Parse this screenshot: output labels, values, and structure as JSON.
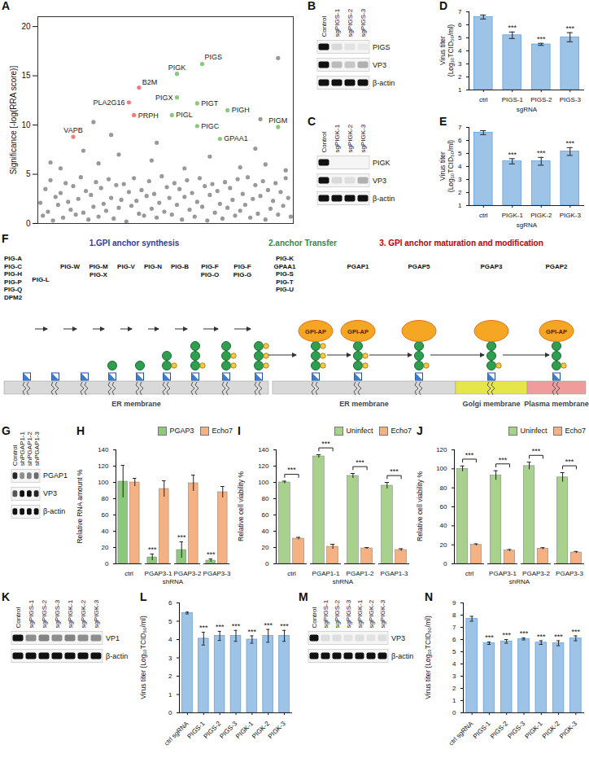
{
  "chart_data": [
    {
      "panel": "A",
      "type": "scatter",
      "y_label": "Significance [-log(RRA score)]",
      "xlim": [
        0,
        101
      ],
      "ylim": [
        0,
        21
      ],
      "yticks": [
        0,
        5,
        10,
        15,
        20
      ],
      "tick_labels": "y",
      "series": [
        {
          "color": "#999999",
          "x": [
            1,
            2,
            3,
            4,
            5,
            6,
            7,
            8,
            9,
            10,
            11,
            12,
            13,
            14,
            15,
            16,
            17,
            18,
            19,
            20,
            21,
            22,
            23,
            24,
            25,
            26,
            27,
            28,
            29,
            30,
            31,
            32,
            33,
            34,
            35,
            36,
            37,
            38,
            39,
            40,
            41,
            42,
            43,
            44,
            45,
            46,
            47,
            48,
            49,
            50,
            51,
            52,
            53,
            54,
            55,
            56,
            57,
            58,
            59,
            60,
            61,
            62,
            63,
            64,
            65,
            66,
            67,
            68,
            69,
            70,
            71,
            72,
            73,
            74,
            75,
            76,
            77,
            78,
            79,
            80,
            81,
            82,
            83,
            84,
            85,
            86,
            87,
            88,
            89,
            90,
            91,
            92,
            93,
            94,
            95,
            96,
            97,
            98,
            99,
            100,
            5,
            9,
            18,
            24,
            29,
            32,
            45,
            47,
            58,
            68,
            80,
            86,
            90,
            98,
            22,
            88,
            95
          ],
          "y": [
            2.1,
            0.8,
            3.5,
            1.2,
            4.4,
            0.3,
            2.7,
            1.9,
            3.1,
            0.6,
            4.1,
            2.2,
            1.4,
            3.8,
            0.9,
            2.5,
            4.7,
            1.1,
            3.3,
            0.4,
            2.9,
            1.7,
            4.2,
            0.7,
            3.6,
            2.0,
            1.3,
            4.5,
            2.6,
            0.5,
            3.9,
            1.6,
            2.4,
            4.0,
            0.2,
            3.2,
            1.8,
            4.6,
            2.3,
            1.0,
            3.4,
            0.8,
            2.8,
            4.3,
            1.5,
            3.0,
            0.6,
            2.1,
            4.8,
            1.2,
            3.7,
            2.6,
            0.9,
            4.1,
            1.9,
            3.5,
            0.4,
            2.7,
            4.4,
            1.4,
            3.1,
            0.7,
            2.2,
            4.6,
            1.7,
            3.8,
            0.3,
            2.9,
            4.0,
            1.1,
            3.3,
            2.0,
            0.5,
            4.2,
            1.6,
            3.6,
            2.4,
            0.8,
            4.5,
            1.3,
            3.0,
            1.9,
            4.7,
            0.6,
            2.5,
            3.9,
            1.0,
            2.8,
            4.3,
            0.4,
            3.4,
            1.5,
            2.3,
            4.1,
            0.9,
            3.2,
            1.8,
            4.6,
            2.6,
            0.7,
            6.2,
            5.6,
            7.4,
            6.1,
            9.0,
            7.0,
            6.4,
            8.2,
            5.6,
            6.8,
            5.7,
            7.6,
            6.0,
            5.4,
            10.3,
            10.6,
            16.8
          ]
        },
        {
          "color": "#F07C7C",
          "x": [
            14,
            36,
            40,
            38
          ],
          "y": [
            8.8,
            12.3,
            13.8,
            11.0
          ],
          "labels": [
            "VAPB",
            "PLA2G16",
            "B2M",
            "PRPH"
          ]
        },
        {
          "color": "#8CC97A",
          "x": [
            55,
            65,
            55,
            63,
            75,
            53,
            63,
            72,
            95
          ],
          "y": [
            15.2,
            16.2,
            12.8,
            12.2,
            11.5,
            11.0,
            9.9,
            8.6,
            9.8
          ],
          "labels": [
            "PIGK",
            "PIGS",
            "PIGX",
            "PIGT",
            "PIGH",
            "PIGL",
            "PIGC",
            "GPAA1",
            "PIGM"
          ]
        }
      ]
    },
    {
      "panel": "D",
      "type": "bar",
      "y_label": "Virus titer (Log₁₀TCID₅₀/ml)",
      "x_label": "sgRNA",
      "categories": [
        "ctrl",
        "PIGS-1",
        "PIGS-2",
        "PIGS-3"
      ],
      "values": [
        6.6,
        5.2,
        4.5,
        5.05
      ],
      "errors": [
        0.15,
        0.25,
        0.08,
        0.35
      ],
      "color": "#9DC3E6",
      "ylim": [
        1,
        7
      ],
      "yticks": [
        1,
        2,
        3,
        4,
        5,
        6,
        7
      ],
      "annotations": [
        {
          "category": "PIGS-1",
          "text": "***"
        },
        {
          "category": "PIGS-2",
          "text": "***"
        },
        {
          "category": "PIGS-3",
          "text": "***"
        }
      ]
    },
    {
      "panel": "E",
      "type": "bar",
      "y_label": "Virus titer (Log₁₀TCID₅₀/ml)",
      "x_label": "sgRNA",
      "categories": [
        "ctrl",
        "PIGK-1",
        "PIGK-2",
        "PIGK-3"
      ],
      "values": [
        6.6,
        4.4,
        4.4,
        5.15
      ],
      "errors": [
        0.15,
        0.2,
        0.3,
        0.3
      ],
      "color": "#9DC3E6",
      "ylim": [
        1,
        7
      ],
      "yticks": [
        1,
        2,
        3,
        4,
        5,
        6,
        7
      ],
      "annotations": [
        {
          "category": "PIGK-1",
          "text": "***"
        },
        {
          "category": "PIGK-2",
          "text": "***"
        },
        {
          "category": "PIGK-3",
          "text": "***"
        }
      ]
    },
    {
      "panel": "H",
      "type": "bar",
      "y_label": "Relative RNA amount %",
      "x_label": "shRNA",
      "categories": [
        "ctrl",
        "PGAP3-1",
        "PGAP3-2",
        "PGAP3-3"
      ],
      "series": [
        {
          "name": "PGAP3",
          "color": "#8CC97A",
          "values": [
            101,
            8,
            17,
            4
          ],
          "errors": [
            20,
            4,
            10,
            2
          ]
        },
        {
          "name": "Echo7",
          "color": "#F4B183",
          "values": [
            100,
            92,
            99,
            88
          ],
          "errors": [
            5,
            10,
            10,
            7
          ]
        }
      ],
      "ylim": [
        0,
        140
      ],
      "yticks": [
        0,
        20,
        40,
        60,
        80,
        100,
        120,
        140
      ],
      "legend": "top-right",
      "annotations": [
        {
          "category": "PGAP3-1",
          "series": "PGAP3",
          "text": "***"
        },
        {
          "category": "PGAP3-2",
          "series": "PGAP3",
          "text": "***"
        },
        {
          "category": "PGAP3-3",
          "series": "PGAP3",
          "text": "***"
        }
      ]
    },
    {
      "panel": "I",
      "type": "bar",
      "y_label": "Relative cell viability %",
      "x_label": "shRNA",
      "categories": [
        "ctrl",
        "PGAP1-1",
        "PGAP1-2",
        "PGAP1-3"
      ],
      "series": [
        {
          "name": "Uninfect",
          "color": "#A9D18E",
          "values": [
            100,
            132,
            108,
            96
          ],
          "errors": [
            1.5,
            2,
            3,
            4
          ]
        },
        {
          "name": "Echo7",
          "color": "#F4B183",
          "values": [
            31,
            21,
            19,
            17
          ],
          "errors": [
            1.5,
            3,
            1,
            1.5
          ]
        }
      ],
      "ylim": [
        0,
        140
      ],
      "yticks": [
        0,
        20,
        40,
        60,
        80,
        100,
        120,
        140
      ],
      "legend": "top-right",
      "annotations": [
        {
          "category": "ctrl",
          "between": [
            "Uninfect",
            "Echo7"
          ],
          "text": "***"
        },
        {
          "category": "PGAP1-1",
          "between": [
            "Uninfect",
            "Echo7"
          ],
          "text": "***"
        },
        {
          "category": "PGAP1-2",
          "between": [
            "Uninfect",
            "Echo7"
          ],
          "text": "***"
        },
        {
          "category": "PGAP1-3",
          "between": [
            "Uninfect",
            "Echo7"
          ],
          "text": "***"
        }
      ]
    },
    {
      "panel": "J",
      "type": "bar",
      "y_label": "Relative cell viability %",
      "x_label": "shRNA",
      "categories": [
        "ctrl",
        "PGAP3-1",
        "PGAP3-2",
        "PGAP3-3"
      ],
      "series": [
        {
          "name": "Uninfect",
          "color": "#A9D18E",
          "values": [
            100,
            93,
            103,
            91
          ],
          "errors": [
            3,
            5,
            4,
            5
          ]
        },
        {
          "name": "Echo7",
          "color": "#F4B183",
          "values": [
            20,
            14,
            16,
            12
          ],
          "errors": [
            1,
            1,
            1,
            1
          ]
        }
      ],
      "ylim": [
        0,
        120
      ],
      "yticks": [
        0,
        20,
        40,
        60,
        80,
        100,
        120
      ],
      "legend": "top-right",
      "annotations": [
        {
          "category": "ctrl",
          "between": [
            "Uninfect",
            "Echo7"
          ],
          "text": "***"
        },
        {
          "category": "PGAP3-1",
          "between": [
            "Uninfect",
            "Echo7"
          ],
          "text": "***"
        },
        {
          "category": "PGAP3-2",
          "between": [
            "Uninfect",
            "Echo7"
          ],
          "text": "***"
        },
        {
          "category": "PGAP3-3",
          "between": [
            "Uninfect",
            "Echo7"
          ],
          "text": "***"
        }
      ]
    },
    {
      "panel": "L",
      "type": "bar",
      "y_label": "Virus titer (Log₁₀TCID₅₀/ml)",
      "categories": [
        "ctrl sgRNA",
        "PIGS-1",
        "PIGS-2",
        "PIGS-3",
        "PIGK-1",
        "PIGK-2",
        "PIGK-3"
      ],
      "values": [
        5.45,
        4.05,
        4.2,
        4.2,
        4.0,
        4.2,
        4.2
      ],
      "errors": [
        0.05,
        0.35,
        0.25,
        0.3,
        0.2,
        0.35,
        0.3
      ],
      "color": "#9DC3E6",
      "ylim": [
        0,
        6
      ],
      "yticks": [
        0,
        1,
        2,
        3,
        4,
        5,
        6
      ],
      "annotations": [
        {
          "category": "PIGS-1",
          "text": "***"
        },
        {
          "category": "PIGS-2",
          "text": "***"
        },
        {
          "category": "PIGS-3",
          "text": "***"
        },
        {
          "category": "PIGK-1",
          "text": "***"
        },
        {
          "category": "PIGK-2",
          "text": "***"
        },
        {
          "category": "PIGK-3",
          "text": "***"
        }
      ]
    },
    {
      "panel": "N",
      "type": "bar",
      "y_label": "Virus titer (Log₁₀TCID₅₀/ml)",
      "categories": [
        "ctrl sgRNA",
        "PIGS-1",
        "PIGS-2",
        "PIGS-3",
        "PIGK-1",
        "PIGK-2",
        "PIGK-3"
      ],
      "values": [
        7.7,
        5.7,
        5.85,
        6.05,
        5.75,
        5.7,
        6.1
      ],
      "errors": [
        0.2,
        0.1,
        0.15,
        0.08,
        0.15,
        0.2,
        0.2
      ],
      "color": "#9DC3E6",
      "ylim": [
        0,
        9
      ],
      "yticks": [
        0,
        1,
        2,
        3,
        4,
        5,
        6,
        7,
        8,
        9
      ],
      "annotations": [
        {
          "category": "PIGS-1",
          "text": "***"
        },
        {
          "category": "PIGS-2",
          "text": "***"
        },
        {
          "category": "PIGS-3",
          "text": "***"
        },
        {
          "category": "PIGK-1",
          "text": "***"
        },
        {
          "category": "PIGK-2",
          "text": "***"
        },
        {
          "category": "PIGK-3",
          "text": "***"
        }
      ]
    }
  ],
  "blots": [
    {
      "panel": "B",
      "lanes": [
        "Control",
        "sgPIGS-1",
        "sgPIGS-2",
        "sgPIGS-3"
      ],
      "rows": [
        {
          "name": "PIGS",
          "intensity": [
            1,
            0.12,
            0.08,
            0.06
          ]
        },
        {
          "name": "VP3",
          "intensity": [
            1,
            0.25,
            0.2,
            0.3
          ]
        },
        {
          "name": "β-actin",
          "intensity": [
            1,
            1,
            1,
            1
          ]
        }
      ]
    },
    {
      "panel": "C",
      "lanes": [
        "Control",
        "sgPIGK-1",
        "sgPIGK-2",
        "sgPIGK-3"
      ],
      "rows": [
        {
          "name": "PIGK",
          "intensity": [
            1,
            0,
            0,
            0
          ]
        },
        {
          "name": "VP3",
          "intensity": [
            1,
            0.12,
            0.1,
            0.3
          ]
        },
        {
          "name": "β-actin",
          "intensity": [
            1,
            1,
            1,
            1
          ]
        }
      ]
    },
    {
      "panel": "G",
      "lanes": [
        "Control",
        "shPGAP1-1",
        "shPGAP1-2",
        "shPGAP1-3"
      ],
      "rows": [
        {
          "name": "PGAP1",
          "intensity": [
            0.9,
            0.45,
            0.5,
            0.6
          ]
        },
        {
          "name": "VP3",
          "intensity": [
            0.7,
            1,
            1,
            0.9
          ]
        },
        {
          "name": "β-actin",
          "intensity": [
            1,
            1,
            1,
            1
          ]
        }
      ]
    },
    {
      "panel": "K",
      "lanes": [
        "Control",
        "sgPIGS-1",
        "sgPIGS-2",
        "sgPIGS-3",
        "sgPIGK-1",
        "sgPIGK-2",
        "sgPIGK-3"
      ],
      "rows": [
        {
          "name": "VP1",
          "intensity": [
            1,
            0.45,
            0.5,
            0.45,
            0.5,
            0.45,
            0.45
          ]
        },
        {
          "name": "β-actin",
          "intensity": [
            1,
            1,
            1,
            1,
            1,
            1,
            1
          ]
        }
      ]
    },
    {
      "panel": "M",
      "lanes": [
        "Control",
        "sgPIGS-1",
        "sgPIGS-2",
        "sgPIGS-3",
        "sgPIGK-1",
        "sgPIGK-2",
        "sgPIGK-3"
      ],
      "rows": [
        {
          "name": "VP3",
          "intensity": [
            1,
            0.1,
            0.1,
            0.08,
            0.1,
            0.08,
            0.1
          ]
        },
        {
          "name": "β-actin",
          "intensity": [
            1,
            1,
            1,
            1,
            1,
            1,
            1
          ]
        }
      ]
    }
  ],
  "pathway": {
    "panel": "F",
    "stages": [
      {
        "title": "1.GPI anchor synthesis",
        "color": "#2F3F9F"
      },
      {
        "title": "2.anchor Transfer",
        "color": "#2E8B57"
      },
      {
        "title": "3. GPI anchor maturation and modification",
        "color": "#C00000"
      }
    ],
    "enzymes": [
      [
        "PIG-A",
        "PIG-C",
        "PIG-H",
        "PIG-P",
        "PIG-Q",
        "DPM2"
      ],
      [
        "PIG-L"
      ],
      [
        "PIG-W"
      ],
      [
        "PIG-M",
        "PIG-X"
      ],
      [
        "PIG-V"
      ],
      [
        "PIG-N"
      ],
      [
        "PIG-B"
      ],
      [
        "PIG-F",
        "PIG-O"
      ],
      [
        "PIG-F",
        "PIG-G"
      ],
      [
        "PIG-K",
        "GPAA1",
        "PIG-S",
        "PIG-T",
        "PIG-U"
      ],
      [
        "PGAP1"
      ],
      [
        "PGAP5"
      ],
      [
        "PGAP3"
      ],
      [
        "PGAP2"
      ]
    ],
    "membranes": [
      "ER membrane",
      "ER membrane",
      "Golgi membrane",
      "Plasma membrane"
    ],
    "protein_label": "GPI-AP"
  }
}
